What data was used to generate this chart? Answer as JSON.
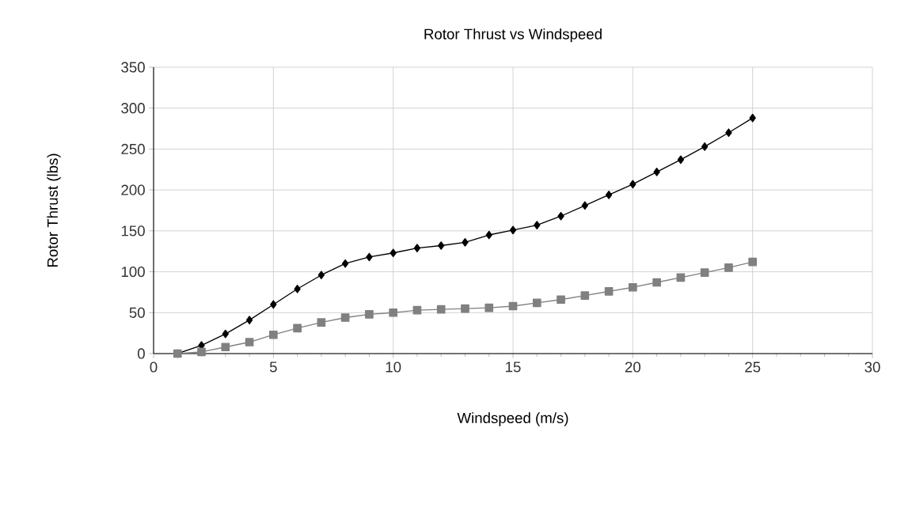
{
  "chart_data": {
    "type": "line",
    "title": "Rotor Thrust vs Windspeed",
    "xlabel": "Windspeed (m/s)",
    "ylabel": "Rotor Thrust (lbs)",
    "x": [
      1,
      2,
      3,
      4,
      5,
      6,
      7,
      8,
      9,
      10,
      11,
      12,
      13,
      14,
      15,
      16,
      17,
      18,
      19,
      20,
      21,
      22,
      23,
      24,
      25
    ],
    "series": [
      {
        "color": "#000000",
        "marker": "diamond",
        "values": [
          0,
          10,
          24,
          41,
          60,
          79,
          96,
          110,
          118,
          123,
          129,
          132,
          136,
          145,
          151,
          157,
          168,
          181,
          194,
          207,
          222,
          237,
          253,
          270,
          288
        ]
      },
      {
        "color": "#808080",
        "marker": "square",
        "values": [
          0,
          2,
          8,
          14,
          23,
          31,
          38,
          44,
          48,
          50,
          53,
          54,
          55,
          56,
          58,
          62,
          66,
          71,
          76,
          81,
          87,
          93,
          99,
          105,
          112
        ]
      }
    ],
    "xlim": [
      0,
      30
    ],
    "xticks": [
      0,
      5,
      10,
      15,
      20,
      25,
      30
    ],
    "ylim": [
      0,
      350
    ],
    "yticks": [
      0,
      50,
      100,
      150,
      200,
      250,
      300,
      350
    ],
    "grid": true,
    "line_style": "solid"
  }
}
